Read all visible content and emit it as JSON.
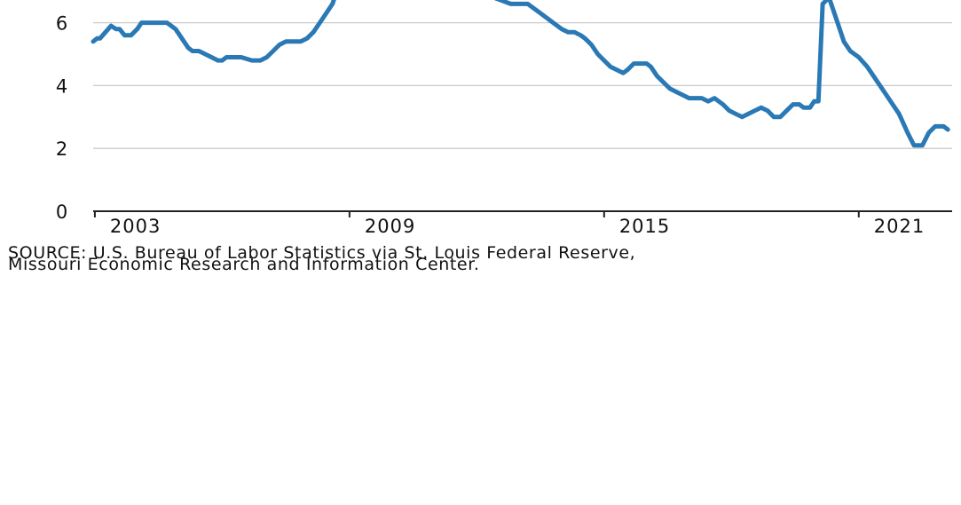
{
  "chart_data": {
    "type": "line",
    "y_ticks": [
      0,
      2,
      4,
      6
    ],
    "x_ticks": [
      "2003",
      "2009",
      "2015",
      "2021"
    ],
    "x_tick_years": [
      2003,
      2009,
      2015,
      2021
    ],
    "ylim": [
      0,
      6.6
    ],
    "xlim": [
      2002.96,
      2023.2
    ],
    "grid": true,
    "series": [
      {
        "color": "#2a79b5",
        "x": [
          2002.96,
          2003.05,
          2003.12,
          2003.25,
          2003.38,
          2003.5,
          2003.58,
          2003.7,
          2003.85,
          2004.0,
          2004.1,
          2004.25,
          2004.35,
          2004.5,
          2004.7,
          2004.9,
          2005.05,
          2005.2,
          2005.3,
          2005.45,
          2005.6,
          2005.75,
          2005.9,
          2006.0,
          2006.1,
          2006.25,
          2006.45,
          2006.7,
          2006.9,
          2007.05,
          2007.2,
          2007.35,
          2007.5,
          2007.7,
          2007.85,
          2008.0,
          2008.15,
          2008.3,
          2008.45,
          2008.6,
          2008.65
        ],
        "y": [
          5.4,
          5.5,
          5.5,
          5.7,
          5.9,
          5.8,
          5.8,
          5.6,
          5.6,
          5.8,
          6.0,
          6.0,
          6.0,
          6.0,
          6.0,
          5.8,
          5.5,
          5.2,
          5.1,
          5.1,
          5.0,
          4.9,
          4.8,
          4.8,
          4.9,
          4.9,
          4.9,
          4.8,
          4.8,
          4.9,
          5.1,
          5.3,
          5.4,
          5.4,
          5.4,
          5.5,
          5.7,
          6.0,
          6.3,
          6.6,
          6.8
        ]
      },
      {
        "color": "#2a79b5",
        "x": [
          2012.0,
          2012.2,
          2012.4,
          2012.6,
          2012.8,
          2013.0,
          2013.2,
          2013.4,
          2013.6,
          2013.8,
          2014.0,
          2014.15,
          2014.3,
          2014.45,
          2014.55,
          2014.7,
          2014.85,
          2015.0,
          2015.15,
          2015.3,
          2015.45,
          2015.55,
          2015.7,
          2015.85,
          2016.0,
          2016.1,
          2016.25,
          2016.4,
          2016.55,
          2016.7,
          2016.85,
          2017.0,
          2017.15,
          2017.3,
          2017.45,
          2017.6,
          2017.8,
          2017.95,
          2018.1,
          2018.25,
          2018.4,
          2018.55,
          2018.7,
          2018.85,
          2019.0,
          2019.15,
          2019.3,
          2019.45,
          2019.6,
          2019.7,
          2019.85,
          2019.95,
          2020.05,
          2020.15,
          2020.3,
          2020.4,
          2020.5,
          2020.65,
          2020.8,
          2021.0,
          2021.2,
          2021.4,
          2021.6,
          2021.8,
          2021.95,
          2022.05,
          2022.15,
          2022.3,
          2022.5,
          2022.65,
          2022.8,
          2022.9,
          2023.0,
          2023.1
        ],
        "y": [
          6.9,
          6.8,
          6.8,
          6.7,
          6.6,
          6.6,
          6.6,
          6.4,
          6.2,
          6.0,
          5.8,
          5.7,
          5.7,
          5.6,
          5.5,
          5.3,
          5.0,
          4.8,
          4.6,
          4.5,
          4.4,
          4.5,
          4.7,
          4.7,
          4.7,
          4.6,
          4.3,
          4.1,
          3.9,
          3.8,
          3.7,
          3.6,
          3.6,
          3.6,
          3.5,
          3.6,
          3.4,
          3.2,
          3.1,
          3.0,
          3.1,
          3.2,
          3.3,
          3.2,
          3.0,
          3.0,
          3.2,
          3.4,
          3.4,
          3.3,
          3.3,
          3.5,
          3.5,
          6.6,
          6.8,
          6.4,
          6.0,
          5.4,
          5.1,
          4.9,
          4.6,
          4.2,
          3.8,
          3.4,
          3.1,
          2.8,
          2.5,
          2.1,
          2.1,
          2.5,
          2.7,
          2.7,
          2.7,
          2.6
        ]
      }
    ]
  },
  "source": {
    "line1": "SOURCE: U.S. Bureau of Labor Statistics via St. Louis Federal Reserve,",
    "line2": "Missouri Economic Research and Information Center."
  }
}
